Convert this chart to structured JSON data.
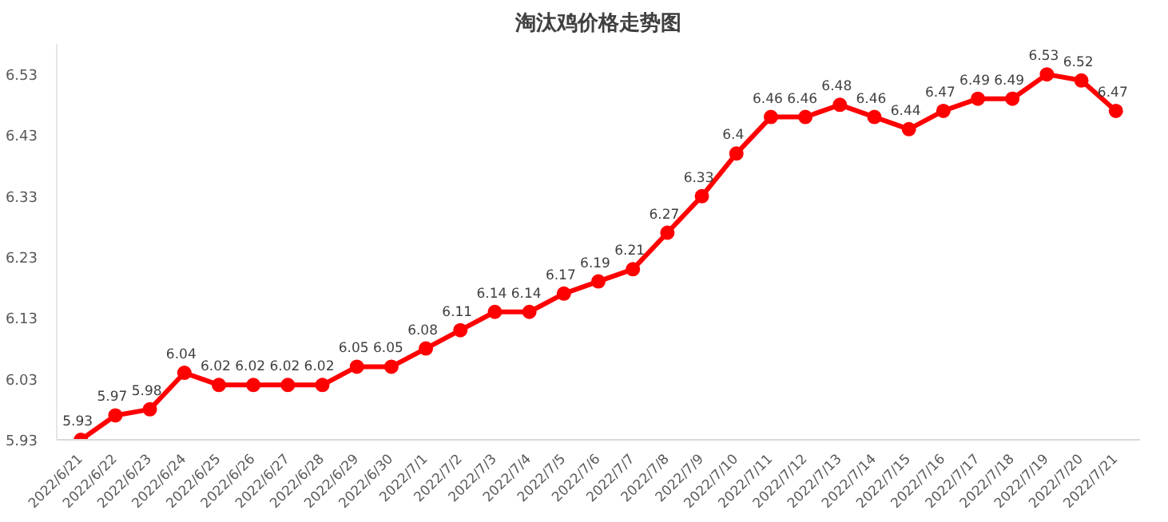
{
  "chart_data": {
    "type": "line",
    "title": "淘汰鸡价格走势图",
    "categories": [
      "2022/6/21",
      "2022/6/22",
      "2022/6/23",
      "2022/6/24",
      "2022/6/25",
      "2022/6/26",
      "2022/6/27",
      "2022/6/28",
      "2022/6/29",
      "2022/6/30",
      "2022/7/1",
      "2022/7/2",
      "2022/7/3",
      "2022/7/4",
      "2022/7/5",
      "2022/7/6",
      "2022/7/7",
      "2022/7/8",
      "2022/7/9",
      "2022/7/10",
      "2022/7/11",
      "2022/7/12",
      "2022/7/13",
      "2022/7/14",
      "2022/7/15",
      "2022/7/16",
      "2022/7/17",
      "2022/7/18",
      "2022/7/19",
      "2022/7/20",
      "2022/7/21"
    ],
    "series": [
      {
        "color": "#ff0000",
        "values": [
          5.93,
          5.97,
          5.98,
          6.04,
          6.02,
          6.02,
          6.02,
          6.02,
          6.05,
          6.05,
          6.08,
          6.11,
          6.14,
          6.14,
          6.17,
          6.19,
          6.21,
          6.27,
          6.33,
          6.4,
          6.46,
          6.46,
          6.48,
          6.46,
          6.44,
          6.47,
          6.49,
          6.49,
          6.53,
          6.52,
          6.47
        ]
      }
    ],
    "ylim": [
      5.93,
      6.58
    ],
    "yticks": [
      5.93,
      6.03,
      6.13,
      6.23,
      6.33,
      6.43,
      6.53
    ],
    "grid": false,
    "marker": "circle",
    "line_style": "solid",
    "data_labels": true
  }
}
